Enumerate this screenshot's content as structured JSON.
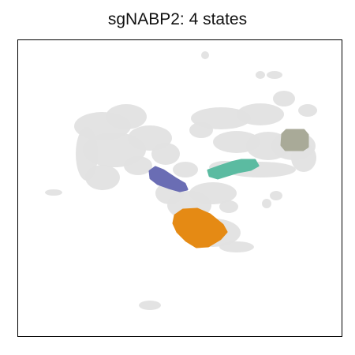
{
  "chart_data": {
    "type": "scatter",
    "title": "sgNABP2: 4 states",
    "xlabel": "",
    "ylabel": "",
    "axes_ticks": "none",
    "grid": false,
    "legend": "none",
    "background_color": "#e1e1e1",
    "series": [
      {
        "color": "#6a6db4",
        "centroid": [
          -1.2,
          0.1
        ]
      },
      {
        "color": "#5bbba1",
        "centroid": [
          3.6,
          0.6
        ]
      },
      {
        "color": "#e58a14",
        "centroid": [
          1.4,
          -2.0
        ]
      },
      {
        "color": "#a9aa98",
        "centroid": [
          7.8,
          1.9
        ]
      }
    ]
  }
}
